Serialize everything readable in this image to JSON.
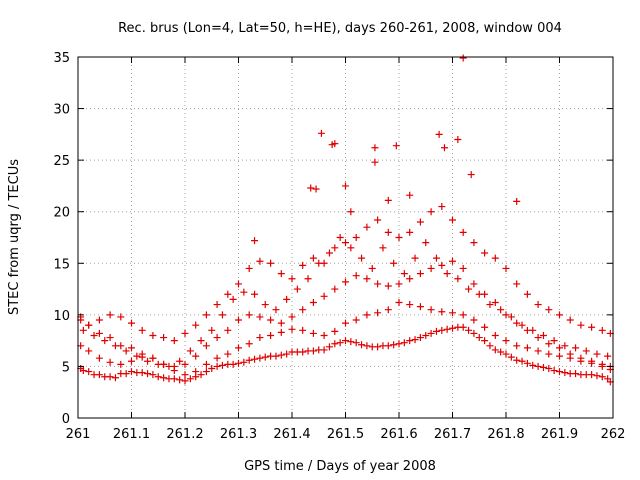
{
  "chart_data": {
    "type": "scatter",
    "title": "Rec. brus (Lon=4, Lat=50, h=HE), days 260-261, 2008, window 004",
    "xlabel": "GPS time / Days of year 2008",
    "ylabel": "STEC from uqrg / TECUs",
    "xlim": [
      261,
      262
    ],
    "ylim": [
      0,
      35
    ],
    "x_ticks": [
      "261",
      "261.1",
      "261.2",
      "261.3",
      "261.4",
      "261.5",
      "261.6",
      "261.7",
      "261.8",
      "261.9",
      "262"
    ],
    "y_ticks": [
      "0",
      "5",
      "10",
      "15",
      "20",
      "25",
      "30",
      "35"
    ],
    "grid": true,
    "marker": "plus",
    "color": "#e00000",
    "series": [
      {
        "x": [
          261.005,
          261.02,
          261.04,
          261.06,
          261.08,
          261.1,
          261.12,
          261.14,
          261.16,
          261.18,
          261.2,
          261.22,
          261.24,
          261.26,
          261.28,
          261.3,
          261.32,
          261.34,
          261.36,
          261.38,
          261.4,
          261.42,
          261.44,
          261.46,
          261.48,
          261.5,
          261.52,
          261.54,
          261.56,
          261.58,
          261.6,
          261.62,
          261.64,
          261.66,
          261.68,
          261.7,
          261.72,
          261.74,
          261.76,
          261.78,
          261.8,
          261.82,
          261.84,
          261.86,
          261.88,
          261.9,
          261.92,
          261.94,
          261.96,
          261.98,
          261.995,
          261.005,
          261.02,
          261.04,
          261.06,
          261.08,
          261.1,
          261.12,
          261.14,
          261.16,
          261.18,
          261.2,
          261.22,
          261.24,
          261.26,
          261.28,
          261.3,
          261.32,
          261.34,
          261.36,
          261.38,
          261.4,
          261.42,
          261.44,
          261.46,
          261.48,
          261.5,
          261.52,
          261.54,
          261.56,
          261.58,
          261.6,
          261.62,
          261.64,
          261.66,
          261.68,
          261.7,
          261.72,
          261.74,
          261.76,
          261.78,
          261.8,
          261.82,
          261.84,
          261.86,
          261.88,
          261.9,
          261.92,
          261.94,
          261.96,
          261.98,
          261.995,
          261.005,
          261.02,
          261.04,
          261.06,
          261.08,
          261.1,
          261.12,
          261.14,
          261.16,
          261.18,
          261.2,
          261.22,
          261.24,
          261.26,
          261.28,
          261.3,
          261.32,
          261.34,
          261.36,
          261.38,
          261.4,
          261.42,
          261.44,
          261.46,
          261.48,
          261.5,
          261.52,
          261.54,
          261.56,
          261.58,
          261.6,
          261.62,
          261.64,
          261.66,
          261.68,
          261.7,
          261.72,
          261.74,
          261.76,
          261.78,
          261.8,
          261.82,
          261.84,
          261.86,
          261.88,
          261.9,
          261.92,
          261.94,
          261.96,
          261.98,
          261.995,
          261.005,
          261.02,
          261.04,
          261.06,
          261.08,
          261.1,
          261.12,
          261.14,
          261.16,
          261.18,
          261.2,
          261.22,
          261.24,
          261.26,
          261.28,
          261.3,
          261.32,
          261.34,
          261.36,
          261.38,
          261.4,
          261.42,
          261.44,
          261.46,
          261.48,
          261.5,
          261.52,
          261.54,
          261.56,
          261.58,
          261.6,
          261.62,
          261.64,
          261.66,
          261.68,
          261.7,
          261.72,
          261.74,
          261.76,
          261.78,
          261.8,
          261.82,
          261.84,
          261.86,
          261.88,
          261.9,
          261.92,
          261.94,
          261.96,
          261.98,
          261.995,
          261.01,
          261.03,
          261.05,
          261.07,
          261.09,
          261.11,
          261.13,
          261.15,
          261.17,
          261.19,
          261.21,
          261.23,
          261.25,
          261.27,
          261.29,
          261.31,
          261.33,
          261.35,
          261.37,
          261.39,
          261.41,
          261.43,
          261.45,
          261.47,
          261.49,
          261.51,
          261.53,
          261.55,
          261.57,
          261.59,
          261.61,
          261.63,
          261.65,
          261.67,
          261.69,
          261.71,
          261.73,
          261.75,
          261.77,
          261.79,
          261.81,
          261.83,
          261.85,
          261.87,
          261.89,
          261.91,
          261.93,
          261.95,
          261.97,
          261.99,
          261.01,
          261.03,
          261.05,
          261.07,
          261.09,
          261.11,
          261.13,
          261.15,
          261.17,
          261.19,
          261.21,
          261.23,
          261.25,
          261.27,
          261.29,
          261.31,
          261.33,
          261.35,
          261.37,
          261.39,
          261.41,
          261.43,
          261.45,
          261.47,
          261.49,
          261.51,
          261.53,
          261.55,
          261.57,
          261.59,
          261.61,
          261.63,
          261.65,
          261.67,
          261.69,
          261.71,
          261.73,
          261.75,
          261.77,
          261.79,
          261.81,
          261.83,
          261.85,
          261.87,
          261.89,
          261.91,
          261.93,
          261.95,
          261.97,
          261.99,
          261.455,
          261.475,
          261.48,
          261.555,
          261.595,
          261.675,
          261.685,
          261.71,
          261.72,
          261.735,
          261.33,
          261.435,
          261.445,
          261.5,
          261.51,
          261.62,
          261.58,
          261.555,
          261.82
        ],
        "y": [
          4.8,
          4.5,
          4.2,
          4.0,
          4.3,
          4.5,
          4.4,
          4.2,
          3.9,
          3.8,
          3.6,
          4.0,
          4.5,
          5.0,
          5.2,
          5.3,
          5.6,
          5.8,
          6.0,
          6.1,
          6.4,
          6.4,
          6.5,
          6.6,
          7.2,
          7.5,
          7.3,
          7.0,
          6.9,
          7.0,
          7.2,
          7.5,
          7.8,
          8.2,
          8.5,
          8.7,
          8.8,
          8.2,
          7.5,
          6.6,
          6.2,
          5.6,
          5.3,
          5.0,
          4.8,
          4.5,
          4.3,
          4.2,
          4.2,
          4.0,
          3.5,
          7.0,
          6.5,
          5.8,
          5.4,
          5.2,
          5.5,
          5.9,
          5.8,
          5.2,
          4.6,
          4.2,
          4.5,
          5.2,
          5.8,
          6.2,
          6.8,
          7.2,
          7.8,
          8.0,
          8.3,
          8.6,
          8.5,
          8.2,
          8.0,
          8.4,
          9.2,
          9.5,
          10.0,
          10.2,
          10.5,
          11.2,
          11.0,
          10.8,
          10.5,
          10.3,
          10.2,
          10.0,
          9.5,
          8.8,
          8.0,
          7.5,
          7.0,
          6.8,
          6.5,
          6.2,
          6.0,
          5.8,
          5.5,
          5.3,
          5.0,
          4.7,
          9.8,
          9.0,
          8.2,
          7.8,
          7.0,
          6.8,
          6.2,
          5.8,
          5.2,
          5.0,
          5.2,
          6.0,
          7.0,
          7.8,
          8.5,
          9.5,
          10.0,
          9.8,
          9.5,
          9.2,
          9.8,
          10.5,
          11.2,
          11.8,
          12.5,
          13.2,
          13.8,
          13.5,
          13.0,
          12.8,
          13.0,
          13.5,
          14.0,
          14.5,
          14.8,
          15.2,
          14.5,
          13.0,
          12.0,
          11.2,
          10.0,
          9.2,
          8.5,
          7.8,
          7.2,
          6.8,
          6.2,
          5.8,
          5.5,
          5.2,
          5.0,
          9.5,
          9.0,
          9.5,
          10.0,
          9.8,
          9.2,
          8.5,
          8.0,
          7.8,
          7.5,
          8.2,
          9.0,
          10.0,
          11.0,
          12.0,
          13.0,
          14.5,
          15.2,
          15.0,
          14.0,
          13.5,
          14.8,
          15.5,
          15.0,
          16.5,
          17.0,
          17.5,
          18.5,
          19.2,
          18.0,
          17.5,
          18.0,
          19.0,
          20.0,
          20.5,
          19.2,
          18.0,
          17.0,
          16.0,
          15.5,
          14.5,
          13.0,
          12.0,
          11.0,
          10.5,
          10.0,
          9.5,
          9.0,
          8.8,
          8.5,
          8.2,
          4.6,
          4.2,
          4.0,
          3.9,
          4.3,
          4.4,
          4.3,
          4.0,
          3.8,
          3.7,
          3.8,
          4.2,
          4.8,
          5.1,
          5.2,
          5.4,
          5.7,
          5.9,
          6.0,
          6.2,
          6.4,
          6.5,
          6.6,
          6.9,
          7.3,
          7.4,
          7.1,
          6.9,
          7.0,
          7.1,
          7.3,
          7.6,
          8.0,
          8.4,
          8.6,
          8.8,
          8.5,
          7.8,
          7.0,
          6.4,
          5.9,
          5.5,
          5.1,
          4.9,
          4.6,
          4.4,
          4.3,
          4.2,
          4.1,
          3.8,
          8.5,
          8.0,
          7.5,
          7.0,
          6.5,
          6.0,
          5.5,
          5.2,
          5.0,
          5.5,
          6.5,
          7.5,
          8.5,
          10.0,
          11.5,
          12.2,
          12.0,
          11.0,
          10.5,
          11.5,
          12.5,
          13.5,
          15.0,
          16.0,
          17.5,
          16.5,
          15.5,
          14.5,
          16.5,
          15.0,
          14.0,
          15.5,
          17.0,
          15.5,
          14.0,
          13.5,
          12.5,
          12.0,
          11.0,
          10.5,
          9.8,
          9.0,
          8.5,
          8.0,
          7.5,
          7.0,
          6.8,
          6.5,
          6.2,
          6.0,
          27.6,
          26.5,
          26.6,
          26.2,
          26.4,
          27.5,
          26.2,
          27.0,
          34.9,
          23.6,
          17.2,
          22.3,
          22.2,
          22.5,
          20.0,
          21.6,
          21.1,
          24.8,
          21.0
        ]
      }
    ]
  }
}
